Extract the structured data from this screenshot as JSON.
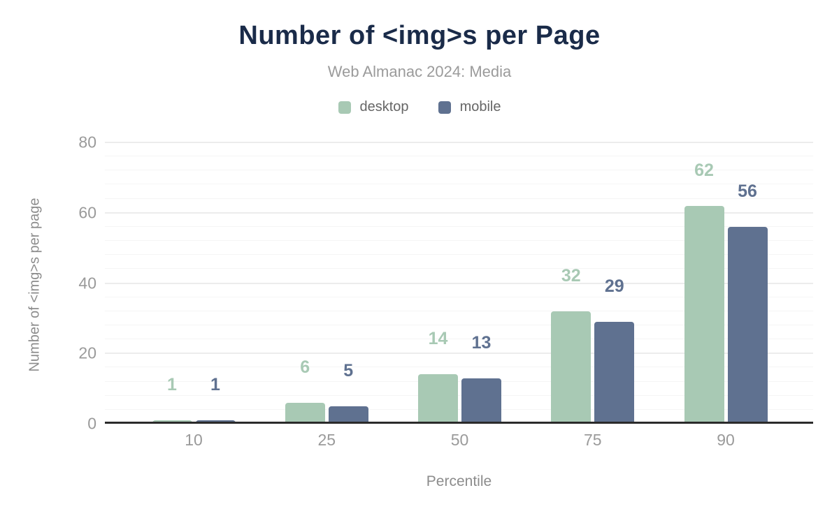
{
  "chart_data": {
    "type": "bar",
    "title": "Number of <img>s per Page",
    "subtitle": "Web Almanac 2024: Media",
    "xlabel": "Percentile",
    "ylabel": "Number of <img>s per page",
    "categories": [
      "10",
      "25",
      "50",
      "75",
      "90"
    ],
    "series": [
      {
        "name": "desktop",
        "color": "#a8c9b4",
        "values": [
          1,
          6,
          14,
          32,
          62
        ]
      },
      {
        "name": "mobile",
        "color": "#5f7190",
        "values": [
          1,
          5,
          13,
          29,
          56
        ]
      }
    ],
    "ylim": [
      0,
      80
    ],
    "y_ticks": [
      0,
      20,
      40,
      60,
      80
    ],
    "minor_grid_step": 4,
    "grid": true,
    "legend_position": "top",
    "value_labels_shown": true
  },
  "colors": {
    "title": "#1a2b49",
    "subtitle": "#9b9b9b",
    "legend_text": "#666666",
    "axis_text": "#9a9a9a",
    "axis_title_text": "#8c8c8c",
    "axis_line": "#2b2b2b",
    "background": "#ffffff"
  }
}
